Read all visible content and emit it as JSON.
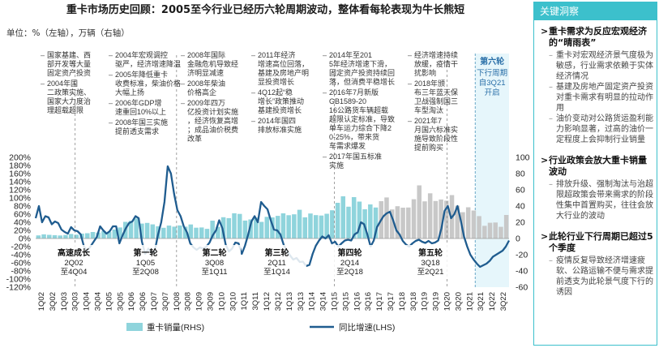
{
  "header": {
    "title": "重卡市场历史回顾：2005至今行业已经历六轮周期波动，整体看每轮表现为牛长熊短",
    "unit": "单位：%（左轴），万辆（右轴）"
  },
  "chart_data": {
    "type": "bar+line",
    "x_labels": [
      "1Q02",
      "3Q02",
      "1Q03",
      "3Q03",
      "1Q04",
      "3Q04",
      "1Q05",
      "3Q05",
      "1Q06",
      "3Q06",
      "1Q07",
      "3Q07",
      "1Q08",
      "3Q08",
      "1Q09",
      "3Q09",
      "1Q10",
      "3Q10",
      "1Q11",
      "3Q11",
      "1Q12",
      "3Q12",
      "1Q13",
      "3Q13",
      "1Q14",
      "3Q14",
      "1Q15",
      "3Q15",
      "1Q16",
      "3Q16",
      "1Q17",
      "3Q17",
      "1Q18",
      "3Q18",
      "1Q19",
      "3Q19",
      "1Q20",
      "3Q20",
      "1Q21",
      "3Q21",
      "1Q22",
      "3Q22"
    ],
    "left_axis": {
      "min": -120,
      "max": 200,
      "step": 20,
      "unit": "%"
    },
    "right_axis": {
      "min": -60,
      "max": 100,
      "step": 20
    },
    "bar_series": {
      "name": "重卡销量(RHS)",
      "color": "#8fd4dc",
      "shade_color": "#c8c8c8",
      "values": [
        3.8,
        5.1,
        4.5,
        4.1,
        3.7,
        4.3,
        5.6,
        4.7,
        6.0,
        6.5,
        8.0,
        7.3,
        9.1,
        8.2,
        11.0,
        13.6,
        20.5,
        21.8,
        24.6,
        18.4,
        19.2,
        17.4,
        15.0,
        13.2,
        15.9,
        14.6,
        16.1,
        14.6,
        17.3,
        13.3,
        13.6,
        11.9,
        22.0,
        14.4,
        26.2,
        25.1,
        31.1,
        30.3,
        22.1,
        23.5,
        25.8,
        20.5,
        26.7,
        26.0,
        27.9,
        31.0,
        28.7,
        29.8,
        35.4,
        26.1,
        30.8,
        28.8,
        28.3,
        30.5,
        34.8,
        44.0,
        52.0,
        39.2,
        51.0,
        45.5,
        36.0,
        42.0,
        38.2,
        46.0,
        50.6,
        35.8,
        39.8,
        38.0,
        38.2,
        48.4,
        65.5,
        45.8,
        55.7,
        46.2,
        48.1,
        46.6,
        53.5,
        40.4,
        32.4,
        38.5,
        34.5,
        27.6,
        15.6,
        19.4,
        19.7,
        14.4,
        29.0
      ],
      "shaded_ranges": [
        [
          63,
          86
        ]
      ]
    },
    "line_series": {
      "name": "同比增速(LHS)",
      "color": "#1f5c8f",
      "values": [
        50,
        80,
        40,
        55,
        52,
        35,
        42,
        38,
        22,
        16,
        12,
        28,
        20,
        18,
        10,
        -20,
        -30,
        -20,
        -8,
        4,
        30,
        20,
        12,
        18,
        30,
        30,
        -12,
        8,
        25,
        38,
        42,
        55,
        50,
        -8,
        -38,
        -25,
        -35,
        -30,
        10,
        40,
        90,
        178,
        160,
        110,
        70,
        55,
        30,
        15,
        -12,
        -22,
        -28,
        -22,
        -25,
        -20,
        -10,
        8,
        20,
        45,
        25,
        -15,
        -32,
        -25,
        -10,
        -12,
        -38,
        -18,
        10,
        42,
        55,
        40,
        90,
        80,
        72,
        45,
        22,
        20,
        10,
        -15,
        -30,
        -42,
        -52,
        -48,
        -58,
        -57,
        -68,
        -65,
        -38,
        -18,
        -5,
        5,
        0,
        8,
        -12,
        -8,
        -20,
        -12,
        -5,
        -3,
        -5,
        10,
        15,
        40,
        35,
        10,
        -20,
        -5,
        28,
        42,
        55,
        62,
        66,
        45,
        20,
        10,
        -6,
        -15,
        -20,
        -12,
        -6,
        -3,
        -8,
        -11,
        -6,
        -12,
        -10,
        -5,
        25,
        68,
        80,
        50,
        60,
        80,
        45,
        5,
        -20,
        -40,
        -52,
        -62,
        -70,
        -66,
        -62,
        -55,
        -45,
        -40,
        -35,
        -30,
        -20,
        -5
      ]
    },
    "phase_labels": [
      {
        "name": "高速成长",
        "range": "2Q02",
        "end": "至4Q04"
      },
      {
        "name": "第一轮",
        "range": "1Q05",
        "end": "至2Q08"
      },
      {
        "name": "第二轮",
        "range": "3Q08",
        "end": "至1Q11"
      },
      {
        "name": "第三轮",
        "range": "2Q11",
        "end": "至1Q14"
      },
      {
        "name": "第四轮",
        "range": "2Q14",
        "end": "至2Q18"
      },
      {
        "name": "第五轮",
        "range": "3Q18",
        "end": "至2Q21"
      }
    ],
    "phase6": {
      "title": "第六轮",
      "text": "下行周期自3Q21开启"
    },
    "annotations": [
      "国家基建、西部开发等大量固定资产投资",
      "2004年国二政策实施、国家大力度治理超载超限",
      "2004年宏观调控驱严，经济增速降温",
      "2005年降低重卡收费标准，柴油价格大幅上扬",
      "2006年GDP增速重回10%以上",
      "2008年国三实施提前透支需求",
      "2008年国际金融危机导致经济明显减速",
      "2008年柴油价格高企",
      "2009年四万亿投资计划实施，经济恢复高增；成品油价税费改革",
      "2011年经济增速高位回落，基建及房地产明显投资增长",
      "4Q12起“稳增长”政策推动基建投资增长",
      "2014年国四排放标准实施",
      "2014年至2015年经济增速下滑，固定资产投资持续回落，但消费平稳增长",
      "2016年7月新版GB1589-2016公路货车辆超载超限认定标准，导致单车运力综合下降20-25%，带来货车需求爆发",
      "2017年国五标准实施",
      "经济增速持续放缓，疫情干扰影响",
      "2018年颁布三年蓝天保卫战强制国三车型淘汰",
      "2021年7月国六标准实施导致阶段性提前购买"
    ],
    "legend_position": "bottom"
  },
  "insight": {
    "title": "关键洞察",
    "sections": [
      {
        "heading": "重卡需求为反应宏观经济的“晴雨表”",
        "bullets": [
          "重卡对宏观经济景气度极为敏感，行业需求依赖于实体经济情况",
          "基建及房地产固定资产投资对重卡需求有明显的拉动作用",
          "油价变动对公路货运盈利能力影响显著，过高的油价一定程度上会抑制行业销量"
        ]
      },
      {
        "heading": "行业政策会放大重卡销量波动",
        "bullets": [
          "排放升级、强制淘汰与治超限超政策会带来需求的阶段性集中首置购买，往往会放大行业的波动"
        ]
      },
      {
        "heading": "此轮行业下行周期已超过5个季度",
        "bullets": [
          "疫情反复导致经济增速疲软、公路运输不便与需求提前透支为此轮景气度下行的诱因"
        ]
      }
    ]
  }
}
